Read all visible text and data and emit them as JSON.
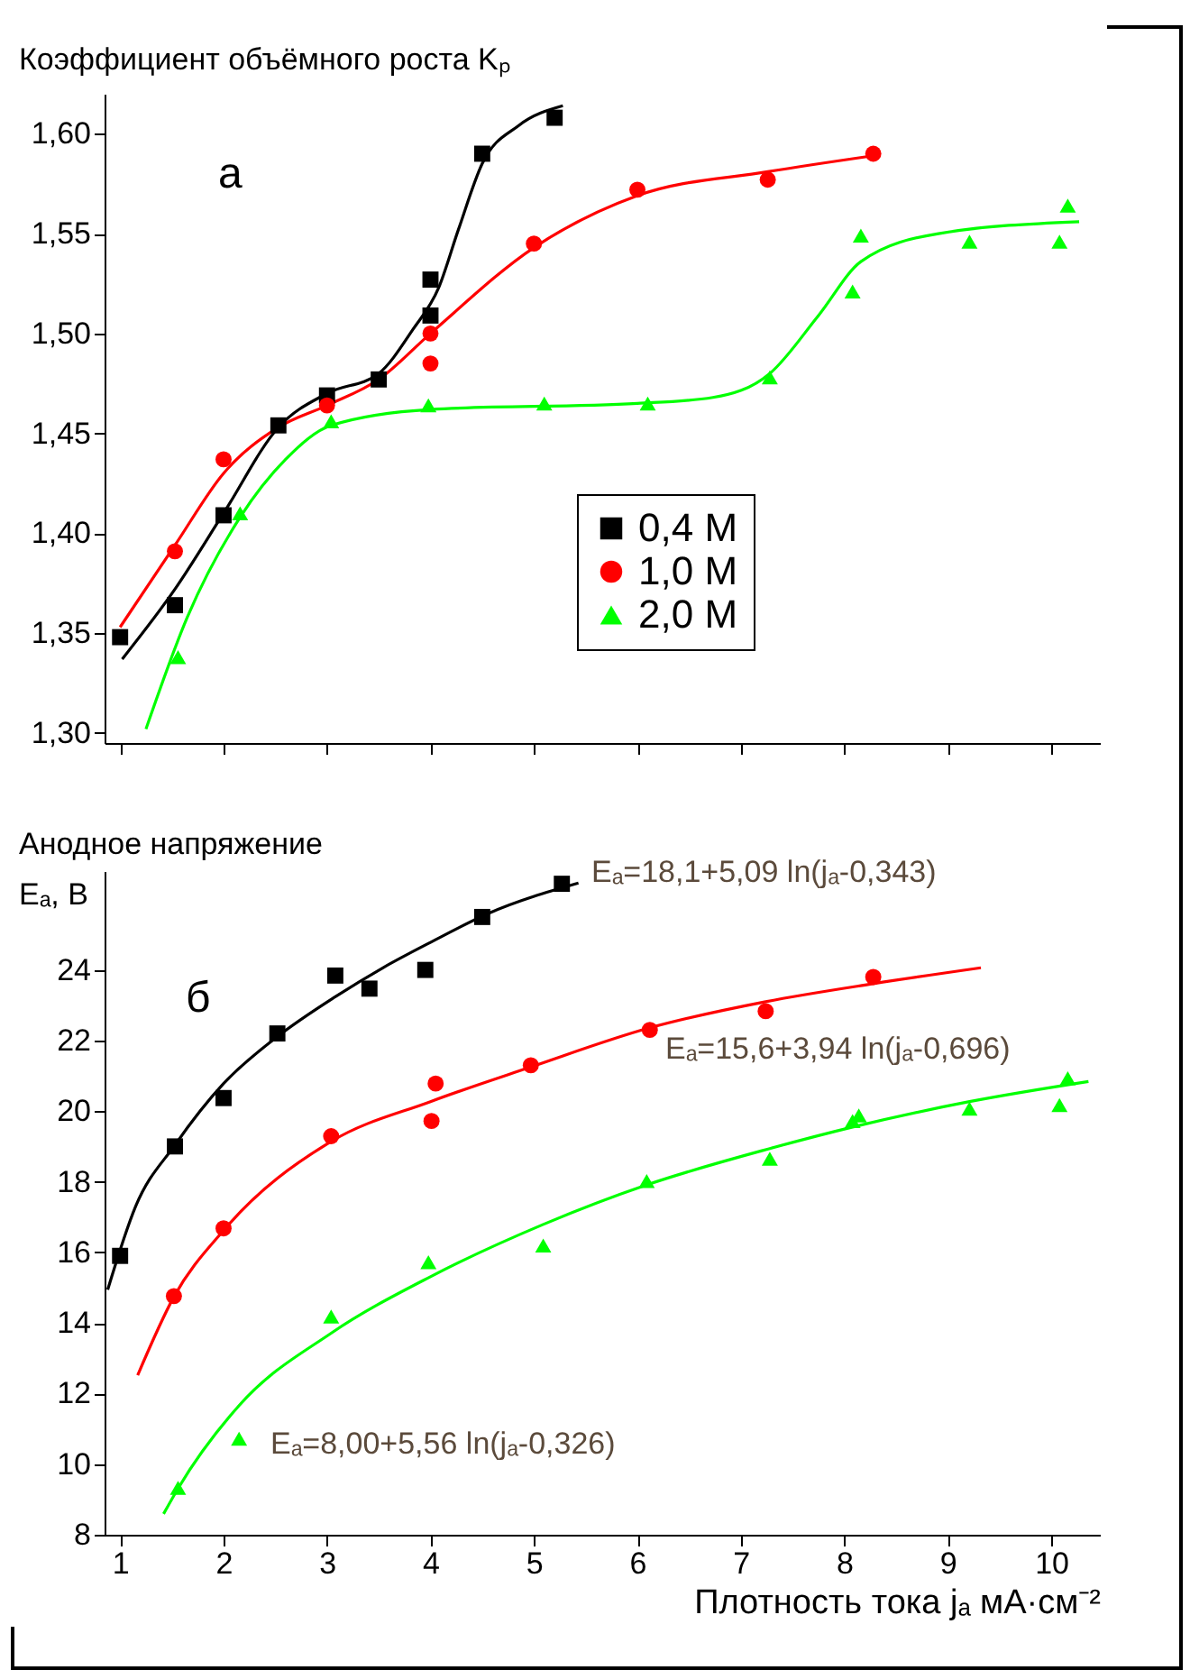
{
  "chart_data": [
    {
      "type": "scatter",
      "ylabel": "Коэффициент объёмного роста Kₚ",
      "annotations": [
        "а"
      ],
      "xlim": [
        0.85,
        10.47
      ],
      "xticks": [
        1,
        2,
        3,
        4,
        5,
        6,
        7,
        8,
        9,
        10
      ],
      "ylim": [
        1.295,
        1.62
      ],
      "yticks": [
        {
          "value": 1.3,
          "label": "1,30"
        },
        {
          "value": 1.35,
          "label": "1,35"
        },
        {
          "value": 1.4,
          "label": "1,40"
        },
        {
          "value": 1.45,
          "label": "1,45"
        },
        {
          "value": 1.5,
          "label": "1,50"
        },
        {
          "value": 1.55,
          "label": "1,55"
        },
        {
          "value": 1.6,
          "label": "1,60"
        }
      ],
      "tick_labels": "y",
      "grid": false,
      "legend": "right",
      "series": [
        {
          "type": "line",
          "color": "#000000",
          "x": [
            1.02,
            1.53,
            2.0,
            2.53,
            3.0,
            3.5,
            3.83,
            4.08,
            4.27,
            4.5,
            4.85,
            5.28
          ],
          "values": [
            1.337,
            1.372,
            1.41,
            1.453,
            1.47,
            1.48,
            1.502,
            1.523,
            1.552,
            1.585,
            1.604,
            1.614
          ]
        },
        {
          "type": "line",
          "color": "#ff0000",
          "x": [
            1.0,
            1.53,
            2.0,
            2.53,
            3.0,
            3.5,
            4.0,
            5.0,
            6.0,
            7.26,
            8.28
          ],
          "values": [
            1.353,
            1.394,
            1.43,
            1.453,
            1.464,
            1.477,
            1.5,
            1.543,
            1.569,
            1.581,
            1.589
          ]
        },
        {
          "type": "line",
          "color": "#00ff00",
          "x": [
            1.25,
            1.65,
            2.16,
            2.6,
            3.04,
            4.0,
            6.0,
            6.73,
            7.28,
            7.75,
            8.16,
            8.91,
            10.27
          ],
          "values": [
            1.302,
            1.358,
            1.408,
            1.437,
            1.454,
            1.462,
            1.465,
            1.468,
            1.48,
            1.509,
            1.536,
            1.55,
            1.556
          ]
        },
        {
          "name": "0,4 M",
          "type": "scatter",
          "marker": "square",
          "color": "#000000",
          "x": [
            1.0,
            1.53,
            2.0,
            2.53,
            3.0,
            3.5,
            4.0,
            4.0,
            4.5,
            5.2
          ],
          "values": [
            1.348,
            1.364,
            1.409,
            1.454,
            1.469,
            1.477,
            1.509,
            1.527,
            1.59,
            1.608
          ]
        },
        {
          "name": "1,0 M",
          "type": "scatter",
          "marker": "circle",
          "color": "#ff0000",
          "x": [
            1.53,
            2.0,
            3.0,
            4.0,
            4.0,
            5.0,
            6.0,
            7.26,
            8.28
          ],
          "values": [
            1.391,
            1.437,
            1.464,
            1.485,
            1.5,
            1.545,
            1.572,
            1.577,
            1.59
          ]
        },
        {
          "name": "2,0 M",
          "type": "scatter",
          "marker": "triangle",
          "color": "#00ff00",
          "x": [
            1.56,
            2.16,
            3.04,
            3.98,
            5.1,
            6.1,
            7.28,
            8.08,
            8.16,
            9.21,
            10.08,
            10.16
          ],
          "values": [
            1.338,
            1.41,
            1.456,
            1.464,
            1.465,
            1.465,
            1.478,
            1.521,
            1.549,
            1.546,
            1.546,
            1.564
          ]
        }
      ]
    },
    {
      "type": "scatter",
      "xlabel": "Плотность тока jₐ мА·см⁻²",
      "ylabel": "Анодное напряжение\nEₐ, В",
      "annotations": [
        "б",
        "Eₐ=18,1+5,09 ln(jₐ-0,343)",
        "Eₐ=15,6+3,94 ln(jₐ-0,696)",
        "Eₐ=8,00+5,56 ln(jₐ-0,326)"
      ],
      "xlim": [
        0.85,
        10.47
      ],
      "xticks": [
        1,
        2,
        3,
        4,
        5,
        6,
        7,
        8,
        9,
        10
      ],
      "ylim": [
        8,
        26.8
      ],
      "yticks": [
        8,
        10,
        12,
        14,
        16,
        18,
        20,
        22,
        24
      ],
      "grid": false,
      "legend": false,
      "series": [
        {
          "type": "line",
          "color": "#000000",
          "x": [
            0.88,
            1.15,
            1.53,
            2.0,
            2.52,
            3.08,
            3.54,
            4.0,
            4.56,
            5.43
          ],
          "values": [
            14.94,
            17.3,
            19.04,
            20.78,
            22.11,
            23.24,
            24.06,
            24.78,
            25.6,
            26.46
          ]
        },
        {
          "type": "line",
          "color": "#ff0000",
          "x": [
            1.17,
            1.52,
            2.0,
            3.04,
            4.0,
            4.97,
            6.12,
            7.24,
            8.28,
            9.32
          ],
          "values": [
            12.52,
            14.74,
            16.62,
            19.14,
            20.27,
            21.25,
            22.36,
            23.1,
            23.61,
            24.06
          ]
        },
        {
          "type": "line",
          "color": "#00ff00",
          "x": [
            1.42,
            1.56,
            2.15,
            3.04,
            4.0,
            5.09,
            6.09,
            7.28,
            8.08,
            9.21,
            10.36
          ],
          "values": [
            8.59,
            9.31,
            11.66,
            13.71,
            15.31,
            16.79,
            17.91,
            18.94,
            19.55,
            20.27,
            20.84
          ]
        },
        {
          "type": "scatter",
          "marker": "square",
          "color": "#000000",
          "x": [
            1.0,
            1.53,
            2.0,
            2.52,
            3.08,
            3.41,
            3.95,
            4.5,
            5.27
          ],
          "values": [
            15.9,
            19.0,
            20.37,
            22.2,
            23.84,
            23.47,
            24.0,
            25.5,
            26.44
          ]
        },
        {
          "type": "scatter",
          "marker": "circle",
          "color": "#ff0000",
          "x": [
            1.52,
            2.0,
            3.04,
            4.01,
            4.05,
            4.97,
            6.12,
            7.24,
            8.28
          ],
          "values": [
            14.76,
            16.68,
            19.29,
            19.72,
            20.78,
            21.3,
            22.3,
            22.83,
            23.8
          ]
        },
        {
          "type": "scatter",
          "marker": "triangle",
          "color": "#00ff00",
          "x": [
            1.56,
            2.15,
            3.04,
            3.98,
            5.09,
            6.09,
            7.28,
            8.08,
            8.14,
            9.21,
            10.08,
            10.16
          ],
          "values": [
            9.33,
            10.72,
            14.18,
            15.72,
            16.19,
            18.02,
            18.65,
            19.72,
            19.88,
            20.07,
            20.17,
            20.93
          ]
        }
      ]
    }
  ]
}
